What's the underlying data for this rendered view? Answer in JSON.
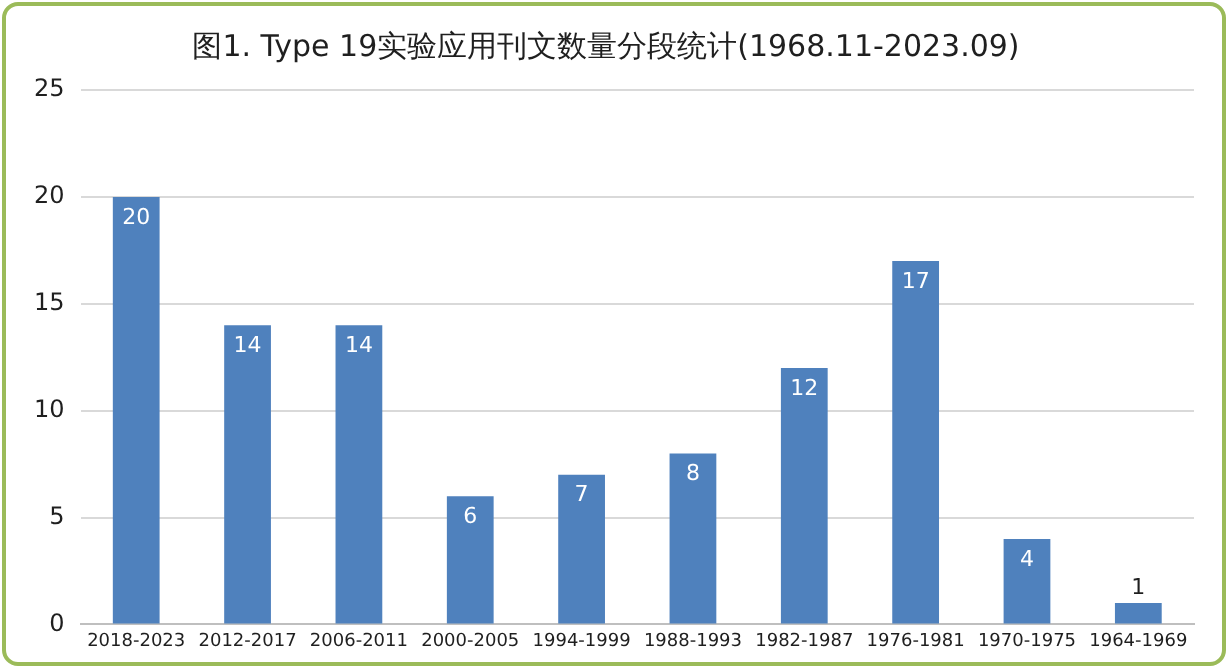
{
  "chart_data": {
    "type": "bar",
    "title": "图1. Type 19实验应用刊文数量分段统计(1968.11-2023.09)",
    "categories": [
      "2018-2023",
      "2012-2017",
      "2006-2011",
      "2000-2005",
      "1994-1999",
      "1988-1993",
      "1982-1987",
      "1976-1981",
      "1970-1975",
      "1964-1969"
    ],
    "values": [
      20,
      14,
      14,
      6,
      7,
      8,
      12,
      17,
      4,
      1
    ],
    "color": "#4f81bd",
    "ylim": [
      0,
      25
    ],
    "yticks": [
      0,
      5,
      10,
      15,
      20,
      25
    ],
    "grid": "y",
    "legend": false,
    "data_labels": true
  }
}
